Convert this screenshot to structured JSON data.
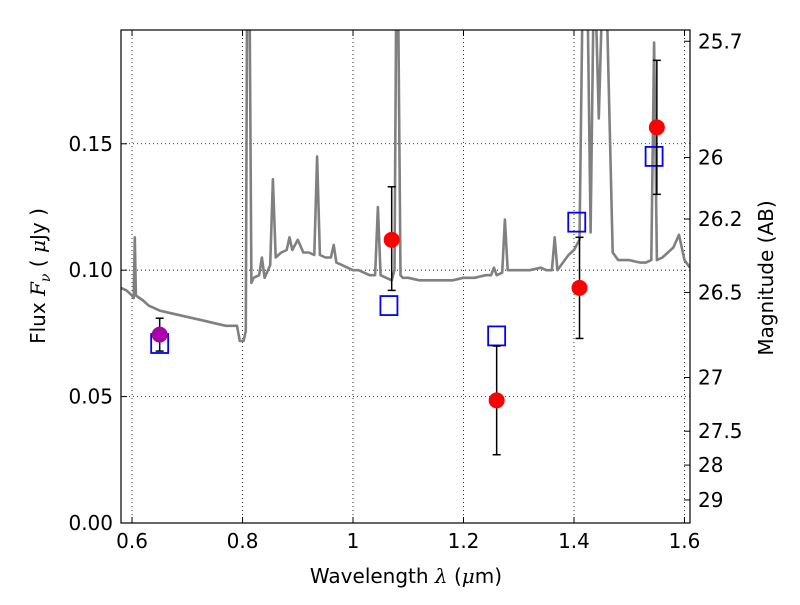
{
  "chart_data": {
    "type": "scatter",
    "xlabel": {
      "prefix": "Wavelength  ",
      "symbol": "λ",
      "unit_open": " (",
      "unit_mu": "μ",
      "unit_rest": "m)"
    },
    "ylabel": {
      "prefix": "Flux  ",
      "symbol": "F",
      "subscript": "ν",
      "unit_open": "  ( ",
      "unit_mu": "μ",
      "unit_rest": "Jy )"
    },
    "y2label": "Magnitude (AB)",
    "xlim": [
      0.58,
      1.61
    ],
    "ylim": [
      0.0,
      0.195
    ],
    "grid": true,
    "x_ticks": [
      {
        "value": 0.6,
        "label": "0.6"
      },
      {
        "value": 0.8,
        "label": "0.8"
      },
      {
        "value": 1.0,
        "label": "1"
      },
      {
        "value": 1.2,
        "label": "1.2"
      },
      {
        "value": 1.4,
        "label": "1.4"
      },
      {
        "value": 1.6,
        "label": "1.6"
      }
    ],
    "y_ticks": [
      {
        "value": 0.0,
        "label": "0.00"
      },
      {
        "value": 0.05,
        "label": "0.05"
      },
      {
        "value": 0.1,
        "label": "0.10"
      },
      {
        "value": 0.15,
        "label": "0.15"
      }
    ],
    "mag_ticks": [
      {
        "value": 25.7,
        "label": "25.7"
      },
      {
        "value": 26.0,
        "label": "26"
      },
      {
        "value": 26.2,
        "label": "26.2"
      },
      {
        "value": 26.5,
        "label": "26.5"
      },
      {
        "value": 27.0,
        "label": "27"
      },
      {
        "value": 27.5,
        "label": "27.5"
      },
      {
        "value": 28.0,
        "label": "28"
      },
      {
        "value": 29.0,
        "label": "29"
      }
    ],
    "template_spectrum": {
      "color": "#808080",
      "points": [
        [
          0.58,
          0.093
        ],
        [
          0.59,
          0.092
        ],
        [
          0.6,
          0.09
        ],
        [
          0.603,
          0.089
        ],
        [
          0.605,
          0.113
        ],
        [
          0.607,
          0.09
        ],
        [
          0.62,
          0.088
        ],
        [
          0.63,
          0.086
        ],
        [
          0.65,
          0.084
        ],
        [
          0.67,
          0.083
        ],
        [
          0.69,
          0.082
        ],
        [
          0.71,
          0.081
        ],
        [
          0.73,
          0.08
        ],
        [
          0.75,
          0.079
        ],
        [
          0.77,
          0.078
        ],
        [
          0.79,
          0.078
        ],
        [
          0.795,
          0.072
        ],
        [
          0.802,
          0.072
        ],
        [
          0.806,
          0.076
        ],
        [
          0.808,
          0.2
        ],
        [
          0.813,
          0.2
        ],
        [
          0.816,
          0.095
        ],
        [
          0.82,
          0.097
        ],
        [
          0.83,
          0.098
        ],
        [
          0.835,
          0.105
        ],
        [
          0.84,
          0.097
        ],
        [
          0.85,
          0.102
        ],
        [
          0.855,
          0.136
        ],
        [
          0.86,
          0.105
        ],
        [
          0.87,
          0.107
        ],
        [
          0.88,
          0.108
        ],
        [
          0.885,
          0.113
        ],
        [
          0.89,
          0.108
        ],
        [
          0.9,
          0.112
        ],
        [
          0.91,
          0.107
        ],
        [
          0.92,
          0.107
        ],
        [
          0.93,
          0.106
        ],
        [
          0.935,
          0.145
        ],
        [
          0.94,
          0.106
        ],
        [
          0.95,
          0.105
        ],
        [
          0.96,
          0.105
        ],
        [
          0.965,
          0.11
        ],
        [
          0.97,
          0.103
        ],
        [
          0.98,
          0.102
        ],
        [
          0.99,
          0.101
        ],
        [
          1.0,
          0.1
        ],
        [
          1.01,
          0.1
        ],
        [
          1.02,
          0.099
        ],
        [
          1.03,
          0.098
        ],
        [
          1.04,
          0.098
        ],
        [
          1.045,
          0.125
        ],
        [
          1.05,
          0.098
        ],
        [
          1.06,
          0.097
        ],
        [
          1.07,
          0.096
        ],
        [
          1.075,
          0.1
        ],
        [
          1.078,
          0.2
        ],
        [
          1.082,
          0.2
        ],
        [
          1.086,
          0.098
        ],
        [
          1.09,
          0.097
        ],
        [
          1.1,
          0.097
        ],
        [
          1.12,
          0.096
        ],
        [
          1.14,
          0.096
        ],
        [
          1.16,
          0.096
        ],
        [
          1.18,
          0.096
        ],
        [
          1.2,
          0.097
        ],
        [
          1.22,
          0.097
        ],
        [
          1.24,
          0.098
        ],
        [
          1.25,
          0.098
        ],
        [
          1.255,
          0.101
        ],
        [
          1.26,
          0.098
        ],
        [
          1.27,
          0.099
        ],
        [
          1.275,
          0.12
        ],
        [
          1.28,
          0.1
        ],
        [
          1.3,
          0.1
        ],
        [
          1.32,
          0.1
        ],
        [
          1.34,
          0.101
        ],
        [
          1.35,
          0.1
        ],
        [
          1.36,
          0.1
        ],
        [
          1.365,
          0.113
        ],
        [
          1.37,
          0.1
        ],
        [
          1.38,
          0.103
        ],
        [
          1.39,
          0.106
        ],
        [
          1.4,
          0.108
        ],
        [
          1.41,
          0.112
        ],
        [
          1.415,
          0.2
        ],
        [
          1.425,
          0.2
        ],
        [
          1.43,
          0.115
        ],
        [
          1.435,
          0.2
        ],
        [
          1.44,
          0.2
        ],
        [
          1.445,
          0.16
        ],
        [
          1.45,
          0.2
        ],
        [
          1.46,
          0.2
        ],
        [
          1.47,
          0.107
        ],
        [
          1.48,
          0.104
        ],
        [
          1.49,
          0.104
        ],
        [
          1.5,
          0.104
        ],
        [
          1.52,
          0.103
        ],
        [
          1.53,
          0.103
        ],
        [
          1.54,
          0.104
        ],
        [
          1.545,
          0.19
        ],
        [
          1.55,
          0.104
        ],
        [
          1.56,
          0.105
        ],
        [
          1.57,
          0.107
        ],
        [
          1.58,
          0.109
        ],
        [
          1.59,
          0.114
        ],
        [
          1.6,
          0.104
        ],
        [
          1.61,
          0.101
        ]
      ]
    },
    "series": [
      {
        "marker": "open-square",
        "color": "#0000ff",
        "points": [
          [
            0.65,
            0.071
          ],
          [
            1.065,
            0.086
          ],
          [
            1.26,
            0.074
          ],
          [
            1.405,
            0.119
          ],
          [
            1.545,
            0.145
          ]
        ]
      },
      {
        "marker": "filled-circle",
        "color": "#ff0000",
        "points": [
          {
            "x": 1.07,
            "y": 0.112,
            "yerr_low": 0.092,
            "yerr_high": 0.133
          },
          {
            "x": 1.26,
            "y": 0.0485,
            "yerr_low": 0.027,
            "yerr_high": 0.07
          },
          {
            "x": 1.41,
            "y": 0.093,
            "yerr_low": 0.073,
            "yerr_high": 0.113
          },
          {
            "x": 1.55,
            "y": 0.1565,
            "yerr_low": 0.13,
            "yerr_high": 0.183
          }
        ]
      },
      {
        "marker": "filled-circle",
        "color": "#aa00aa",
        "points": [
          {
            "x": 0.65,
            "y": 0.0745,
            "yerr_low": 0.068,
            "yerr_high": 0.081
          }
        ]
      }
    ]
  }
}
